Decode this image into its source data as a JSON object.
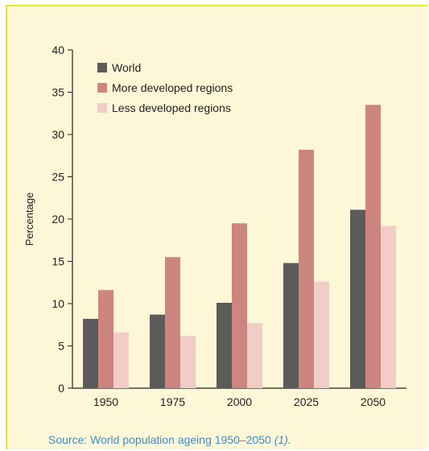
{
  "chart_data": {
    "type": "bar",
    "categories": [
      "1950",
      "1975",
      "2000",
      "2025",
      "2050"
    ],
    "series": [
      {
        "name": "World",
        "values": [
          8.2,
          8.7,
          10.1,
          14.8,
          21.1
        ],
        "color": "#5b5b5b"
      },
      {
        "name": "More developed regions",
        "values": [
          11.6,
          15.5,
          19.5,
          28.2,
          33.5
        ],
        "color": "#cd8580"
      },
      {
        "name": "Less developed regions",
        "values": [
          6.6,
          6.2,
          7.7,
          12.6,
          19.2
        ],
        "color": "#f2cdc8"
      }
    ],
    "title": "",
    "xlabel": "",
    "ylabel": "Percentage",
    "ylim": [
      0,
      40
    ],
    "yticks": [
      0,
      5,
      10,
      15,
      20,
      25,
      30,
      35,
      40
    ],
    "grid": false,
    "legend_position": "top-left"
  },
  "caption": {
    "prefix": "Source: World population ageing 1950–2050 ",
    "reference": "(1)."
  },
  "colors": {
    "frame_background": "#fdf6d7",
    "frame_border": "#e1ea23",
    "caption_text": "#3f8dc9",
    "axis": "#222222"
  }
}
